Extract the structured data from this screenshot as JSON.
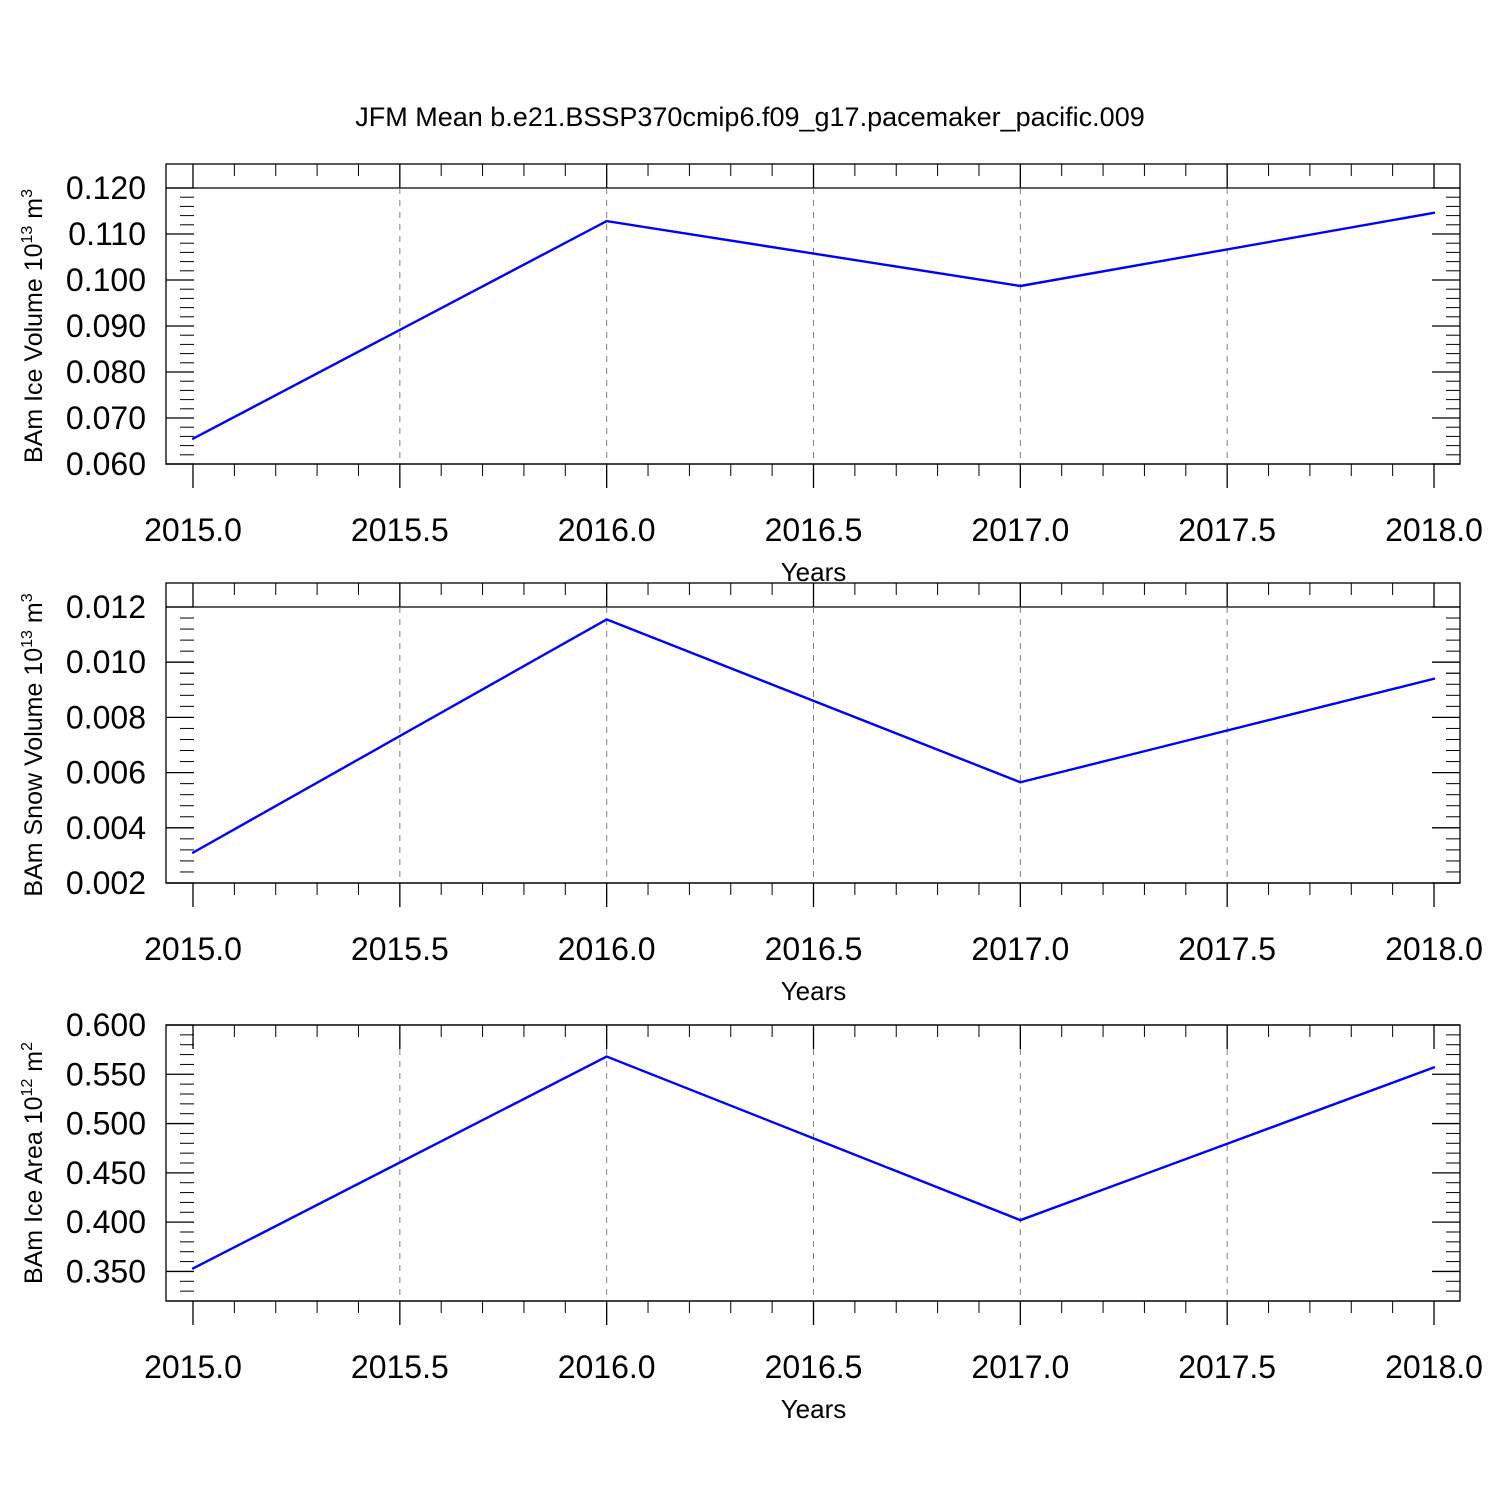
{
  "figure": {
    "title": "JFM Mean b.e21.BSSP370cmip6.f09_g17.pacemaker_pacific.009"
  },
  "colors": {
    "line": "#0000ff",
    "axis": "#000000",
    "grid": "#808080",
    "background": "#ffffff"
  },
  "chart_data": [
    {
      "type": "line",
      "title": "JFM Mean b.e21.BSSP370cmip6.f09_g17.pacemaker_pacific.009",
      "xlabel": "Years",
      "ylabel": {
        "text": "BAm Ice Volume 10",
        "sup": "13",
        "unit": " m",
        "unit_sup": "3"
      },
      "x": [
        2015,
        2016,
        2017,
        2018
      ],
      "series": [
        {
          "values": [
            0.0655,
            0.1128,
            0.0987,
            0.1146
          ]
        }
      ],
      "xlim": [
        2015,
        2018
      ],
      "ylim": [
        0.06,
        0.12
      ],
      "xticks": [
        "2015.0",
        "2015.5",
        "2016.0",
        "2016.5",
        "2017.0",
        "2017.5",
        "2018.0"
      ],
      "yticks": [
        "0.060",
        "0.070",
        "0.080",
        "0.090",
        "0.100",
        "0.110",
        "0.120"
      ],
      "grid": "vertical dashed at x ticks",
      "legend": "none"
    },
    {
      "type": "line",
      "xlabel": "Years",
      "ylabel": {
        "text": "BAm Snow Volume 10",
        "sup": "13",
        "unit": " m",
        "unit_sup": "3"
      },
      "x": [
        2015,
        2016,
        2017,
        2018
      ],
      "series": [
        {
          "values": [
            0.0031,
            0.01155,
            0.00565,
            0.0094
          ]
        }
      ],
      "xlim": [
        2015,
        2018
      ],
      "ylim": [
        0.002,
        0.012
      ],
      "xticks": [
        "2015.0",
        "2015.5",
        "2016.0",
        "2016.5",
        "2017.0",
        "2017.5",
        "2018.0"
      ],
      "yticks": [
        "0.002",
        "0.004",
        "0.006",
        "0.008",
        "0.010",
        "0.012"
      ],
      "grid": "vertical dashed at x ticks",
      "legend": "none"
    },
    {
      "type": "line",
      "xlabel": "Years",
      "ylabel": {
        "text": "BAm Ice Area 10",
        "sup": "12",
        "unit": " m",
        "unit_sup": "2"
      },
      "x": [
        2015,
        2016,
        2017,
        2018
      ],
      "series": [
        {
          "values": [
            0.353,
            0.568,
            0.402,
            0.557
          ]
        }
      ],
      "xlim": [
        2015,
        2018
      ],
      "ylim": [
        0.32,
        0.6
      ],
      "xticks": [
        "2015.0",
        "2015.5",
        "2016.0",
        "2016.5",
        "2017.0",
        "2017.5",
        "2018.0"
      ],
      "yticks": [
        "0.350",
        "0.400",
        "0.450",
        "0.500",
        "0.550",
        "0.600"
      ],
      "grid": "vertical dashed at x ticks",
      "legend": "none"
    }
  ]
}
